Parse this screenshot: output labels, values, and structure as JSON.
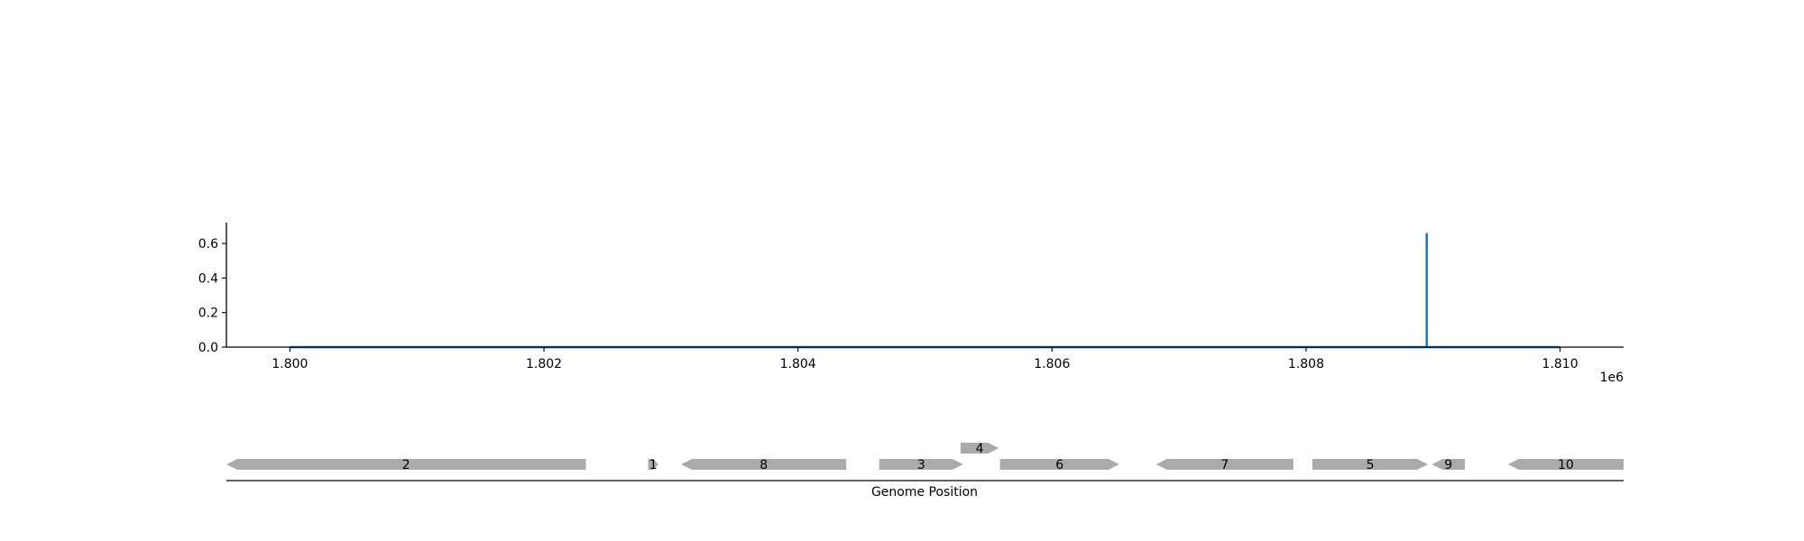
{
  "chart_data": [
    {
      "type": "line",
      "title": "",
      "xlabel": "",
      "ylabel": "",
      "x_offset_label": "1e6",
      "xlim": [
        1799500,
        1810500
      ],
      "ylim": [
        0,
        0.72
      ],
      "x_ticks": [
        1800000,
        1802000,
        1804000,
        1806000,
        1808000,
        1810000
      ],
      "x_tick_labels": [
        "1.800",
        "1.802",
        "1.804",
        "1.806",
        "1.808",
        "1.810"
      ],
      "y_ticks": [
        0.0,
        0.2,
        0.4,
        0.6
      ],
      "y_tick_labels": [
        "0.0",
        "0.2",
        "0.4",
        "0.6"
      ],
      "grid": false,
      "series": [
        {
          "color": "#1f77b4",
          "x": [
            1800000,
            1808950,
            1808950,
            1808950,
            1808950,
            1810000
          ],
          "y": [
            0,
            0,
            0.66,
            0.66,
            0,
            0
          ]
        }
      ]
    },
    {
      "type": "gene-map",
      "xlabel": "Genome Position",
      "xlim": [
        1799500,
        1810500
      ],
      "feature_color": "#aaaaaa",
      "features": [
        {
          "label": "2",
          "start": 1799500,
          "end": 1802330,
          "strand": -1,
          "level": 0
        },
        {
          "label": "1",
          "start": 1802820,
          "end": 1802900,
          "strand": 1,
          "level": 0
        },
        {
          "label": "8",
          "start": 1803080,
          "end": 1804380,
          "strand": -1,
          "level": 0
        },
        {
          "label": "3",
          "start": 1804640,
          "end": 1805300,
          "strand": 1,
          "level": 0
        },
        {
          "label": "4",
          "start": 1805280,
          "end": 1805580,
          "strand": 1,
          "level": 1
        },
        {
          "label": "6",
          "start": 1805590,
          "end": 1806530,
          "strand": 1,
          "level": 0
        },
        {
          "label": "7",
          "start": 1806820,
          "end": 1807900,
          "strand": -1,
          "level": 0
        },
        {
          "label": "5",
          "start": 1808050,
          "end": 1808960,
          "strand": 1,
          "level": 0
        },
        {
          "label": "9",
          "start": 1808990,
          "end": 1809250,
          "strand": -1,
          "level": 0
        },
        {
          "label": "10",
          "start": 1809590,
          "end": 1810500,
          "strand": -1,
          "level": 0
        }
      ]
    }
  ]
}
